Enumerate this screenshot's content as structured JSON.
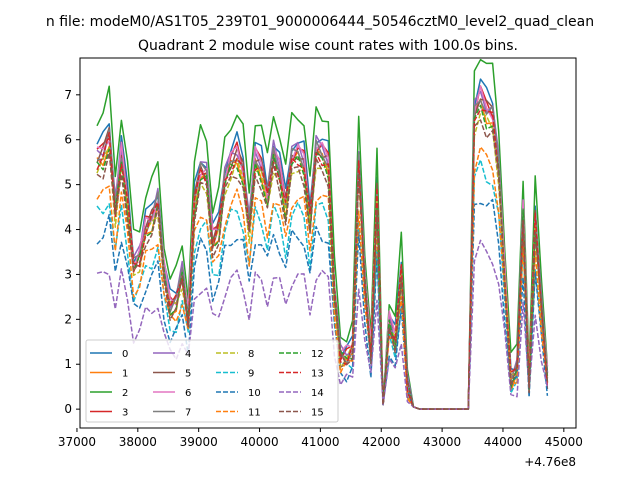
{
  "suptitle": "n file: modeM0/AS1T05_239T01_9000006444_50546cztM0_level2_quad_clean",
  "chart_data": {
    "type": "line",
    "title": "Quadrant 2 module wise count rates with 100.0s bins.",
    "xlabel": "",
    "ylabel": "",
    "x_offset_label": "+4.76e8",
    "xlim": [
      37050,
      45200
    ],
    "ylim": [
      -0.42,
      7.82
    ],
    "xticks": [
      37000,
      38000,
      39000,
      40000,
      41000,
      42000,
      43000,
      44000,
      45000
    ],
    "xtick_labels": [
      "37000",
      "38000",
      "39000",
      "40000",
      "41000",
      "42000",
      "43000",
      "44000",
      "45000"
    ],
    "yticks": [
      0,
      1,
      2,
      3,
      4,
      5,
      6,
      7
    ],
    "ytick_labels": [
      "0",
      "1",
      "2",
      "3",
      "4",
      "5",
      "6",
      "7"
    ],
    "grid": false,
    "legend_placement": "lower-left",
    "x_start": 37330,
    "x_step": 100,
    "base_profile": [
      5.8,
      5.9,
      6.3,
      4.6,
      5.9,
      4.8,
      3.3,
      3.5,
      4.2,
      4.4,
      4.8,
      3.2,
      2.4,
      2.5,
      3.1,
      2.1,
      4.8,
      5.5,
      5.4,
      3.9,
      4.2,
      5.3,
      5.7,
      5.9,
      5.5,
      4.2,
      5.8,
      5.6,
      4.9,
      5.9,
      5.5,
      4.7,
      5.8,
      5.9,
      5.7,
      4.4,
      6.0,
      5.9,
      5.7,
      2.7,
      1.2,
      1.2,
      1.4,
      5.7,
      3.0,
      1.3,
      5.0,
      0.1,
      2.0,
      1.6,
      3.2,
      0.5,
      0.05,
      0.0,
      0.0,
      0.0,
      0.0,
      0.0,
      0.0,
      0.0,
      0.0,
      0.0,
      6.8,
      7.2,
      6.9,
      6.8,
      5.6,
      3.1,
      0.7,
      0.9,
      4.6,
      0.6,
      4.4,
      2.4,
      0.7
    ],
    "series": [
      {
        "name": "0",
        "color": "#1f77b4",
        "style": "solid",
        "scale": 1.0,
        "offset": 0.1
      },
      {
        "name": "1",
        "color": "#ff7f0e",
        "style": "solid",
        "scale": 0.96,
        "offset": -0.1
      },
      {
        "name": "2",
        "color": "#2ca02c",
        "style": "solid",
        "scale": 1.05,
        "offset": 0.4
      },
      {
        "name": "3",
        "color": "#d62728",
        "style": "solid",
        "scale": 0.98,
        "offset": 0.0
      },
      {
        "name": "4",
        "color": "#9467bd",
        "style": "solid",
        "scale": 0.97,
        "offset": 0.1
      },
      {
        "name": "5",
        "color": "#8c564b",
        "style": "solid",
        "scale": 0.99,
        "offset": -0.1
      },
      {
        "name": "6",
        "color": "#e377c2",
        "style": "solid",
        "scale": 0.96,
        "offset": 0.1
      },
      {
        "name": "7",
        "color": "#7f7f7f",
        "style": "solid",
        "scale": 0.97,
        "offset": 0.0
      },
      {
        "name": "8",
        "color": "#bcbd22",
        "style": "dashed",
        "scale": 0.92,
        "offset": 0.0
      },
      {
        "name": "9",
        "color": "#17becf",
        "style": "dashed",
        "scale": 0.75,
        "offset": 0.0
      },
      {
        "name": "10",
        "color": "#1f77b4",
        "style": "dashed",
        "scale": 0.66,
        "offset": 0.0
      },
      {
        "name": "11",
        "color": "#ff7f0e",
        "style": "dashed",
        "scale": 0.8,
        "offset": 0.0
      },
      {
        "name": "12",
        "color": "#2ca02c",
        "style": "dashed",
        "scale": 0.93,
        "offset": 0.0
      },
      {
        "name": "13",
        "color": "#d62728",
        "style": "dashed",
        "scale": 0.95,
        "offset": 0.0
      },
      {
        "name": "14",
        "color": "#9467bd",
        "style": "dashed",
        "scale": 0.5,
        "offset": 0.0
      },
      {
        "name": "15",
        "color": "#8c564b",
        "style": "dashed",
        "scale": 0.9,
        "offset": 0.0
      }
    ]
  }
}
